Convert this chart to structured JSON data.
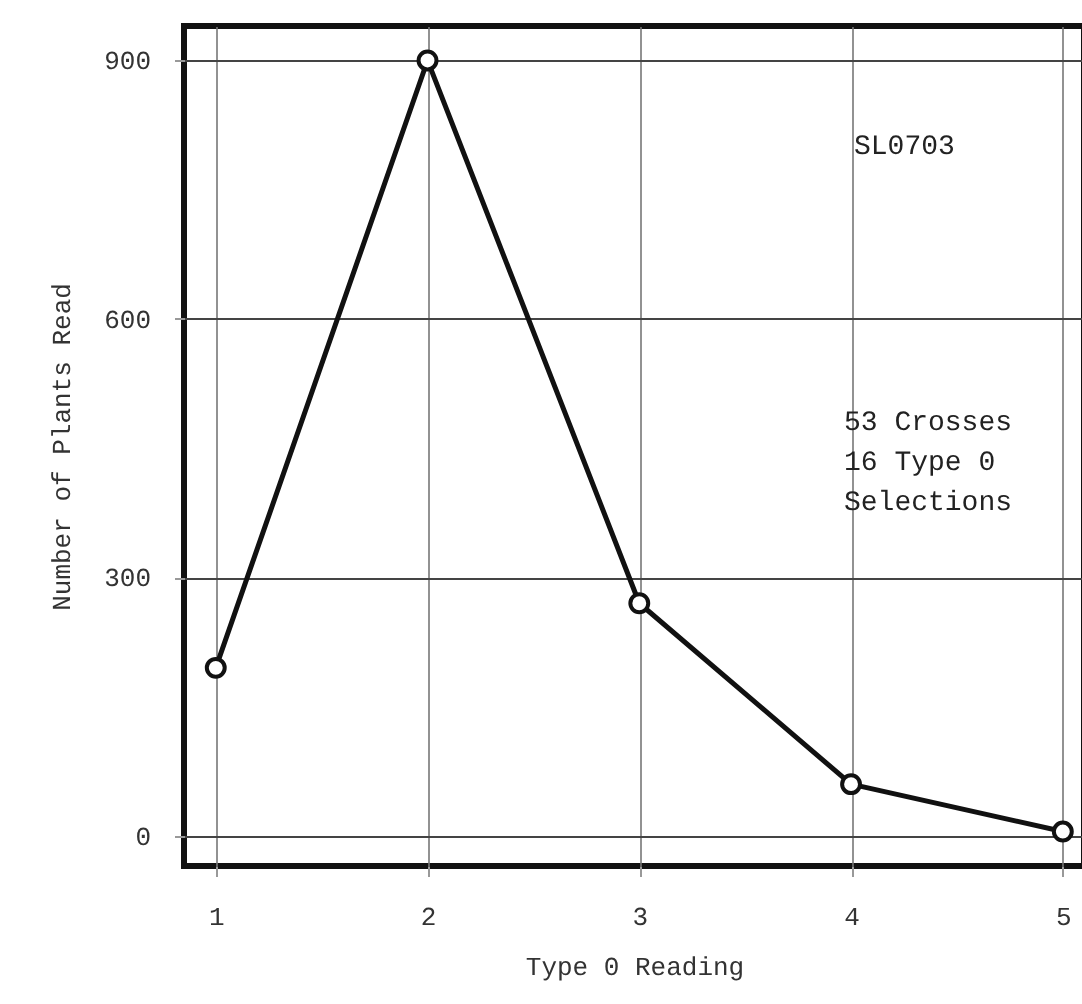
{
  "chart_data": {
    "type": "line",
    "xlabel": "Type 0 Reading",
    "ylabel": "Number of Plants Read",
    "x": [
      1,
      2,
      3,
      4,
      5
    ],
    "series": [
      {
        "color": "#111111",
        "values": [
          195,
          900,
          270,
          60,
          5
        ]
      }
    ],
    "xlim": [
      0.85,
      5.1
    ],
    "ylim": [
      -35,
      940
    ],
    "xticks": [
      1,
      2,
      3,
      4,
      5
    ],
    "yticks": [
      0,
      300,
      600,
      900
    ],
    "grid": true,
    "marker": "circle",
    "line_style": "solid",
    "annotations": [
      "SL0703",
      "53 Crosses",
      "16 Type 0",
      "   Selections"
    ]
  }
}
